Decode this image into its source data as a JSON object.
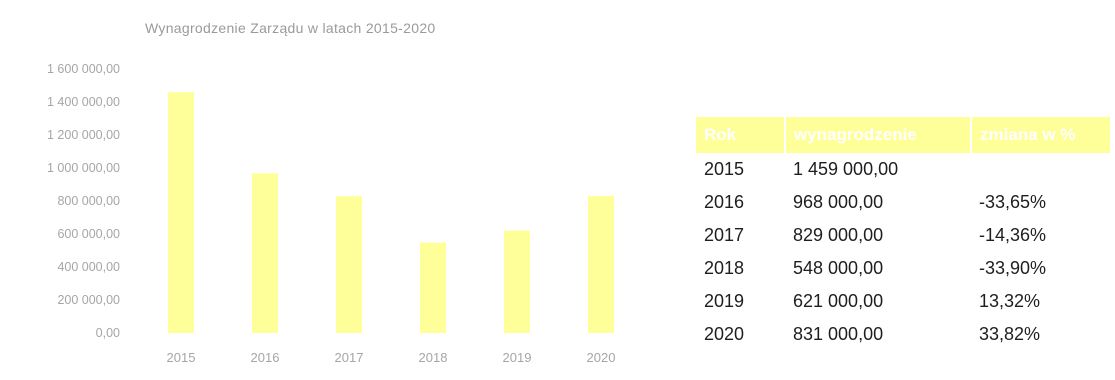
{
  "chart_data": {
    "type": "bar",
    "title": "Wynagrodzenie Zarządu w latach 2015-2020",
    "categories": [
      "2015",
      "2016",
      "2017",
      "2018",
      "2019",
      "2020"
    ],
    "values": [
      1459000,
      968000,
      829000,
      548000,
      621000,
      831000
    ],
    "ylim": [
      0,
      1600000
    ],
    "yticks": [
      {
        "value": 0,
        "label": "0,00"
      },
      {
        "value": 200000,
        "label": "200 000,00"
      },
      {
        "value": 400000,
        "label": "400 000,00"
      },
      {
        "value": 600000,
        "label": "600 000,00"
      },
      {
        "value": 800000,
        "label": "800 000,00"
      },
      {
        "value": 1000000,
        "label": "1 000 000,00"
      },
      {
        "value": 1200000,
        "label": "1 200 000,00"
      },
      {
        "value": 1400000,
        "label": "1 400 000,00"
      },
      {
        "value": 1600000,
        "label": "1 600 000,00"
      }
    ],
    "bar_color": "#ffff99",
    "grid": false,
    "legend": "none"
  },
  "table": {
    "headers": [
      "Rok",
      "wynagrodzenie",
      "zmiana w %"
    ],
    "header_bg": "#ffff99",
    "rows": [
      [
        "2015",
        "1 459 000,00",
        ""
      ],
      [
        "2016",
        "968 000,00",
        "-33,65%"
      ],
      [
        "2017",
        "829 000,00",
        "-14,36%"
      ],
      [
        "2018",
        "548 000,00",
        "-33,90%"
      ],
      [
        "2019",
        "621 000,00",
        "13,32%"
      ],
      [
        "2020",
        "831 000,00",
        "33,82%"
      ]
    ]
  }
}
